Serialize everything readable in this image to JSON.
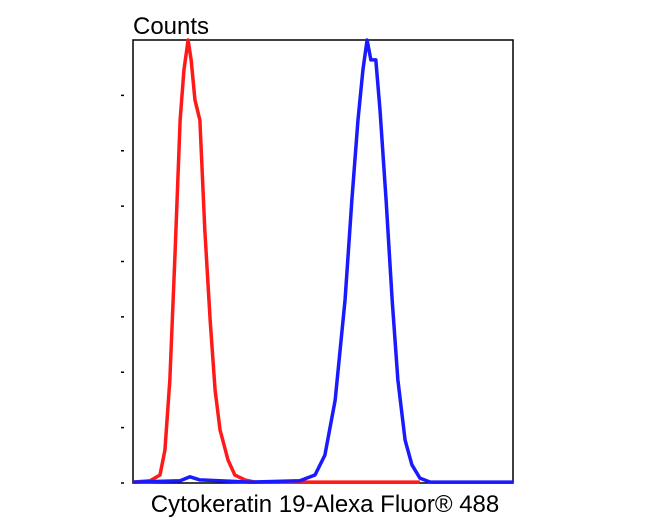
{
  "chart_data": {
    "type": "line",
    "title": "Counts",
    "x_label": "Cytokeratin 19-Alexa Fluor® 488",
    "xlim": [
      0,
      100
    ],
    "ylim": [
      0,
      100
    ],
    "yticks": [
      0,
      12.5,
      25,
      37.5,
      50,
      62.5,
      75,
      87.5
    ],
    "series": [
      {
        "name": "red",
        "color": "#ff1a1a",
        "x": [
          0,
          4.5,
          7.1,
          8.4,
          9.7,
          11.1,
          12.4,
          13.4,
          14.5,
          15.3,
          16.3,
          17.6,
          18.9,
          20.3,
          21.6,
          22.9,
          25,
          26.8,
          29.5,
          32.1,
          43.9,
          75.5
        ],
        "values": [
          0.2,
          0.5,
          1.8,
          7.4,
          23.3,
          52.6,
          81.9,
          93.2,
          100,
          95.5,
          86.5,
          81.9,
          57.1,
          36.8,
          21,
          12,
          5.2,
          1.8,
          0.7,
          0.2,
          0.2,
          0.2
        ]
      },
      {
        "name": "blue",
        "color": "#1a1aff",
        "x": [
          0,
          12.4,
          15,
          17.6,
          30.8,
          43.9,
          47.9,
          50.5,
          53.2,
          55.8,
          57.6,
          59.2,
          60.5,
          61.6,
          62.6,
          63.9,
          65,
          66.6,
          68.2,
          69.7,
          71.6,
          73.4,
          75.5,
          78.2,
          100
        ],
        "values": [
          0.2,
          0.5,
          1.4,
          0.7,
          0.2,
          0.5,
          1.8,
          6.3,
          18.7,
          41.3,
          63.9,
          81.9,
          93.2,
          100,
          95.5,
          95.5,
          84.2,
          63.9,
          41.3,
          23.3,
          9.7,
          4.1,
          1.1,
          0.2,
          0.2
        ]
      }
    ]
  }
}
